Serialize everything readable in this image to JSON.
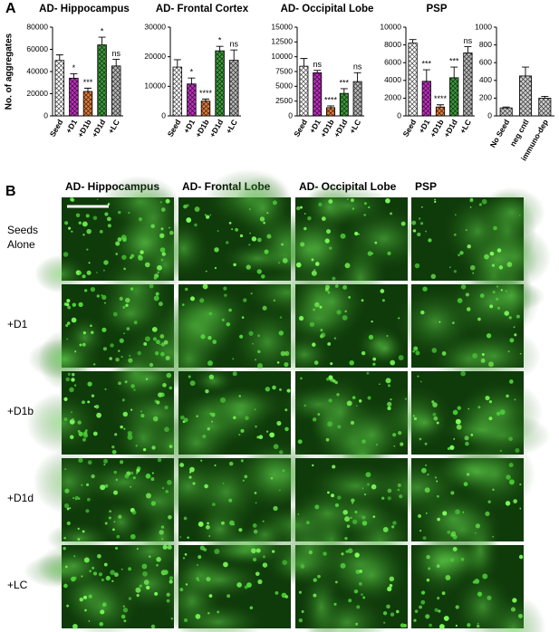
{
  "panel_labels": [
    "A",
    "B"
  ],
  "chart_data": [
    {
      "type": "bar",
      "title": "AD- Hippocampus",
      "y_label": "No. of aggregates",
      "categories": [
        "Seed",
        "+D1",
        "+D1b",
        "+D1d",
        "+LC"
      ],
      "values": [
        50000,
        34000,
        22000,
        64000,
        45000
      ],
      "errors": [
        5000,
        4000,
        3000,
        7000,
        6000
      ],
      "significance": [
        null,
        "*",
        "***",
        "*",
        "ns"
      ],
      "colors": [
        "#ffffff",
        "#c030c0",
        "#e07a3a",
        "#3c9c3c",
        "#b8b8b8"
      ],
      "ylim": [
        0,
        80000
      ],
      "yticks": [
        0,
        20000,
        40000,
        60000,
        80000
      ]
    },
    {
      "type": "bar",
      "title": "AD- Frontal Cortex",
      "categories": [
        "Seed",
        "+D1",
        "+D1b",
        "+D1d",
        "+LC"
      ],
      "values": [
        16500,
        10800,
        5000,
        22000,
        18800
      ],
      "errors": [
        2500,
        2000,
        700,
        1500,
        3500
      ],
      "significance": [
        null,
        "*",
        "****",
        "*",
        "ns"
      ],
      "colors": [
        "#ffffff",
        "#c030c0",
        "#e07a3a",
        "#3c9c3c",
        "#b8b8b8"
      ],
      "ylim": [
        0,
        30000
      ],
      "yticks": [
        0,
        10000,
        20000,
        30000
      ]
    },
    {
      "type": "bar",
      "title": "AD- Occipital Lobe",
      "categories": [
        "Seed",
        "+D1",
        "+D1b",
        "+D1d",
        "+LC"
      ],
      "values": [
        8400,
        7300,
        1400,
        3800,
        5800
      ],
      "errors": [
        1300,
        400,
        300,
        800,
        1500
      ],
      "significance": [
        null,
        "ns",
        "****",
        "***",
        "ns"
      ],
      "colors": [
        "#ffffff",
        "#c030c0",
        "#e07a3a",
        "#3c9c3c",
        "#b8b8b8"
      ],
      "ylim": [
        0,
        15000
      ],
      "yticks": [
        0,
        2500,
        5000,
        7500,
        10000,
        12500,
        15000
      ]
    },
    {
      "type": "bar",
      "title": "PSP",
      "categories": [
        "Seed",
        "+D1",
        "+D1b",
        "+D1d",
        "+LC"
      ],
      "values": [
        8200,
        3900,
        1000,
        4300,
        7100
      ],
      "errors": [
        400,
        1300,
        250,
        1200,
        700
      ],
      "significance": [
        null,
        "***",
        "****",
        "***",
        "ns"
      ],
      "colors": [
        "#ffffff",
        "#c030c0",
        "#e07a3a",
        "#3c9c3c",
        "#b8b8b8"
      ],
      "ylim": [
        0,
        10000
      ],
      "yticks": [
        0,
        2000,
        4000,
        6000,
        8000,
        10000
      ]
    },
    {
      "type": "bar",
      "categories": [
        "No Seed",
        "neg cntl",
        "immuno-dep"
      ],
      "values": [
        90,
        450,
        200
      ],
      "errors": [
        10,
        100,
        20
      ],
      "colors": [
        "#d0d0d0",
        "#d0d0d0",
        "#d0d0d0"
      ],
      "ylim": [
        0,
        1000
      ],
      "yticks": [
        0,
        200,
        400,
        600,
        800,
        1000
      ]
    }
  ],
  "image_grid": {
    "columns": [
      "AD- Hippocampus",
      "AD- Frontal Lobe",
      "AD- Occipital Lobe",
      "PSP"
    ],
    "rows": [
      "Seeds Alone",
      "+D1",
      "+D1b",
      "+D1d",
      "+LC"
    ]
  }
}
